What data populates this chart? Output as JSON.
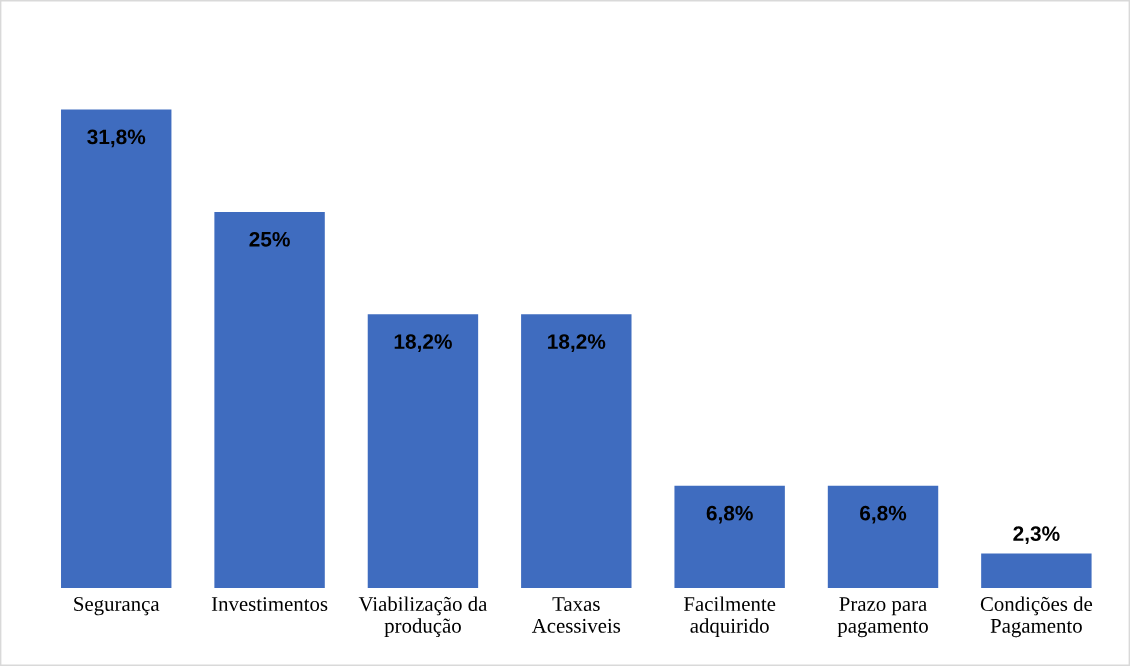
{
  "chart_data": {
    "type": "bar",
    "categories": [
      "Segurança",
      "Investimentos",
      "Viabilização da\nprodução",
      "Taxas\nAcessiveis",
      "Facilmente\nadquirido",
      "Prazo para\npagamento",
      "Condições de\nPagamento"
    ],
    "values": [
      31.8,
      25,
      18.2,
      18.2,
      6.8,
      6.8,
      2.3
    ],
    "value_labels": [
      "31,8%",
      "25%",
      "18,2%",
      "18,2%",
      "6,8%",
      "6,8%",
      "2,3%"
    ],
    "color": "#3f6cbf",
    "grid": false,
    "legend": false
  }
}
